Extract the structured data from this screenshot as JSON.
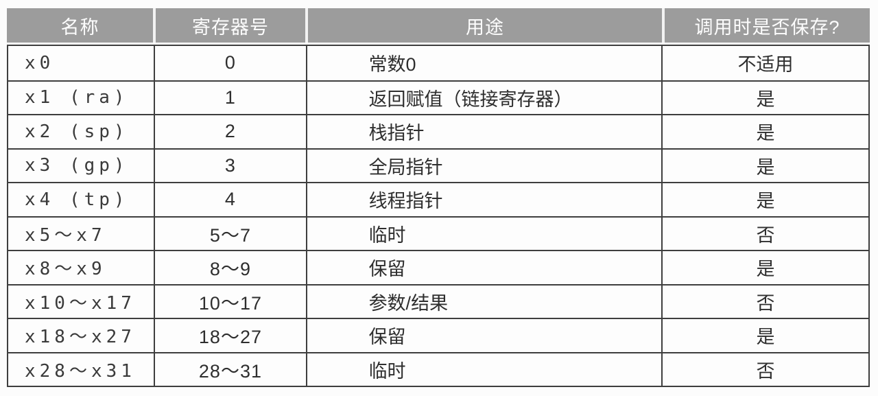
{
  "table": {
    "columns": [
      {
        "label": "名称"
      },
      {
        "label": "寄存器号"
      },
      {
        "label": "用途"
      },
      {
        "label": "调用时是否保存?"
      }
    ],
    "rows": [
      {
        "name": "x0",
        "number": "0",
        "usage": "常数0",
        "saved": "不适用"
      },
      {
        "name": "x1 (ra)",
        "number": "1",
        "usage": "返回赋值（链接寄存器）",
        "saved": "是"
      },
      {
        "name": "x2 (sp)",
        "number": "2",
        "usage": "栈指针",
        "saved": "是"
      },
      {
        "name": "x3 (gp)",
        "number": "3",
        "usage": "全局指针",
        "saved": "是"
      },
      {
        "name": "x4 (tp)",
        "number": "4",
        "usage": "线程指针",
        "saved": "是"
      },
      {
        "name": "x5～x7",
        "number": "5～7",
        "usage": "临时",
        "saved": "否"
      },
      {
        "name": "x8～x9",
        "number": "8～9",
        "usage": "保留",
        "saved": "是"
      },
      {
        "name": "x10～x17",
        "number": "10～17",
        "usage": "参数/结果",
        "saved": "否"
      },
      {
        "name": "x18～x27",
        "number": "18～27",
        "usage": "保留",
        "saved": "是"
      },
      {
        "name": "x28～x31",
        "number": "28～31",
        "usage": "临时",
        "saved": "否"
      }
    ],
    "colors": {
      "header_bg": "#9c9c9c",
      "header_text": "#fdfdfd",
      "grid_border": "#3e3e3e",
      "body_text": "#2e2e2e",
      "page_bg": "#fcfcfc"
    }
  }
}
